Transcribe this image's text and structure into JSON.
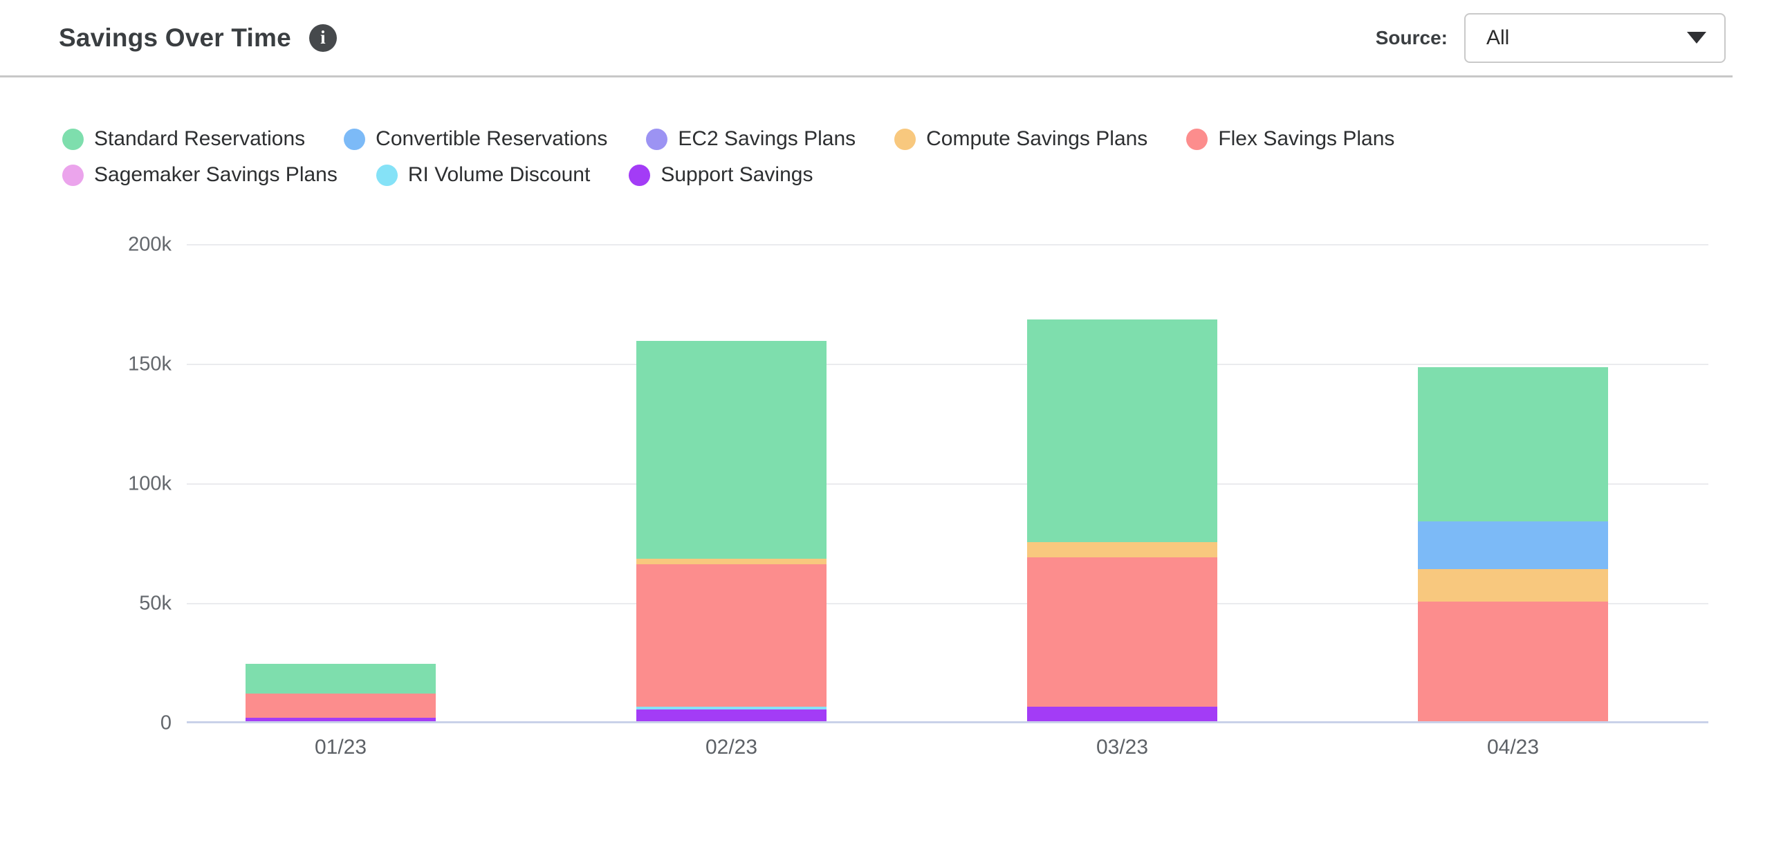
{
  "header": {
    "title": "Savings Over Time",
    "info_glyph": "i",
    "source_label": "Source:",
    "source_value": "All"
  },
  "icons": {
    "info": "info-icon",
    "dropdown_caret": "caret-down-icon",
    "legend_swatch": "legend-dot-icon"
  },
  "legend": {
    "items": [
      {
        "label": "Standard Reservations",
        "color": "#7EDEAD"
      },
      {
        "label": "Convertible Reservations",
        "color": "#7CBAF7"
      },
      {
        "label": "EC2 Savings Plans",
        "color": "#9C93F3"
      },
      {
        "label": "Compute Savings Plans",
        "color": "#F8C87E"
      },
      {
        "label": "Flex Savings Plans",
        "color": "#FC8D8D"
      },
      {
        "label": "Sagemaker Savings Plans",
        "color": "#EBA4EC"
      },
      {
        "label": "RI Volume Discount",
        "color": "#85E2F7"
      },
      {
        "label": "Support Savings",
        "color": "#A33CF6"
      }
    ]
  },
  "chart_data": {
    "type": "bar",
    "stacked": true,
    "title": "Savings Over Time",
    "categories": [
      "01/23",
      "02/23",
      "03/23",
      "04/23"
    ],
    "unit": "USD thousands",
    "stack_note": "series listed bottom to top",
    "series": [
      {
        "name": "Support Savings",
        "color": "#A33CF6",
        "values": [
          1.5,
          5,
          6,
          0
        ]
      },
      {
        "name": "RI Volume Discount",
        "color": "#85E2F7",
        "values": [
          0,
          1,
          0,
          0
        ]
      },
      {
        "name": "Flex Savings Plans",
        "color": "#FC8D8D",
        "values": [
          10,
          59.5,
          62.5,
          50
        ]
      },
      {
        "name": "Compute Savings Plans",
        "color": "#F8C87E",
        "values": [
          0,
          2.5,
          6.5,
          13.5
        ]
      },
      {
        "name": "Convertible Reservations",
        "color": "#7CBAF7",
        "values": [
          0,
          0,
          0,
          20
        ]
      },
      {
        "name": "Standard Reservations",
        "color": "#7EDEAD",
        "values": [
          12.5,
          91,
          93,
          64.5
        ]
      },
      {
        "name": "EC2 Savings Plans",
        "color": "#9C93F3",
        "values": [
          0,
          0,
          0,
          0
        ]
      },
      {
        "name": "Sagemaker Savings Plans",
        "color": "#EBA4EC",
        "values": [
          0,
          0,
          0,
          0
        ]
      }
    ],
    "y_tick_labels": [
      "0",
      "50k",
      "100k",
      "150k",
      "200k"
    ],
    "y_tick_values": [
      0,
      50,
      100,
      150,
      200
    ],
    "ylim": [
      0,
      200
    ],
    "grid": true,
    "legend_position": "top-left"
  }
}
